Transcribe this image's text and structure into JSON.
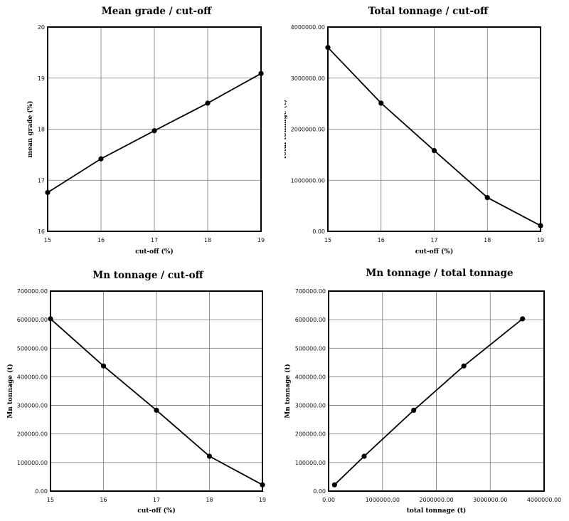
{
  "chart_data": [
    {
      "type": "line",
      "title": "Mean grade / cut-off",
      "xlabel": "cut-off (%)",
      "ylabel": "mean grade (%)",
      "x_tick_labels": [
        "15",
        "16",
        "17",
        "18",
        "19"
      ],
      "y_tick_labels": [
        "16",
        "17",
        "18",
        "19",
        "20"
      ],
      "xlim": [
        15,
        19
      ],
      "ylim": [
        16,
        20
      ],
      "grid": true,
      "series": [
        {
          "x": [
            15,
            16,
            17,
            18,
            19
          ],
          "y": [
            16.76,
            17.42,
            17.97,
            18.51,
            19.09
          ]
        }
      ]
    },
    {
      "type": "line",
      "title": "Total tonnage / cut-off",
      "xlabel": "cut-off (%)",
      "ylabel": "total tonnage (t)",
      "x_tick_labels": [
        "15",
        "16",
        "17",
        "18",
        "19"
      ],
      "y_tick_labels": [
        "0.00",
        "1000000.00",
        "2000000.00",
        "3000000.00",
        "4000000.00"
      ],
      "xlim": [
        15,
        19
      ],
      "ylim": [
        0,
        4000000
      ],
      "grid": true,
      "series": [
        {
          "x": [
            15,
            16,
            17,
            18,
            19
          ],
          "y": [
            3600000,
            2510000,
            1580000,
            660000,
            110000
          ]
        }
      ]
    },
    {
      "type": "line",
      "title": "Mn tonnage / cut-off",
      "xlabel": "cut-off (%)",
      "ylabel": "Mn tonnage (t)",
      "x_tick_labels": [
        "15",
        "16",
        "17",
        "18",
        "19"
      ],
      "y_tick_labels": [
        "0.00",
        "100000.00",
        "200000.00",
        "300000.00",
        "400000.00",
        "500000.00",
        "600000.00",
        "700000.00"
      ],
      "xlim": [
        15,
        19
      ],
      "ylim": [
        0,
        700000
      ],
      "grid": true,
      "series": [
        {
          "x": [
            15,
            16,
            17,
            18,
            19
          ],
          "y": [
            603000,
            438000,
            283000,
            122000,
            22000
          ]
        }
      ]
    },
    {
      "type": "line",
      "title": "Mn tonnage / total tonnage",
      "xlabel": "total tonnage (t)",
      "ylabel": "Mn tonnage (t)",
      "x_tick_labels": [
        "0.00",
        "1000000.00",
        "2000000.00",
        "3000000.00",
        "4000000.00"
      ],
      "y_tick_labels": [
        "0.00",
        "100000.00",
        "200000.00",
        "300000.00",
        "400000.00",
        "500000.00",
        "600000.00",
        "700000.00"
      ],
      "xlim": [
        0,
        4000000
      ],
      "ylim": [
        0,
        700000
      ],
      "grid": true,
      "series": [
        {
          "x": [
            110000,
            660000,
            1580000,
            2510000,
            3600000
          ],
          "y": [
            22000,
            122000,
            283000,
            438000,
            603000
          ]
        }
      ]
    }
  ]
}
